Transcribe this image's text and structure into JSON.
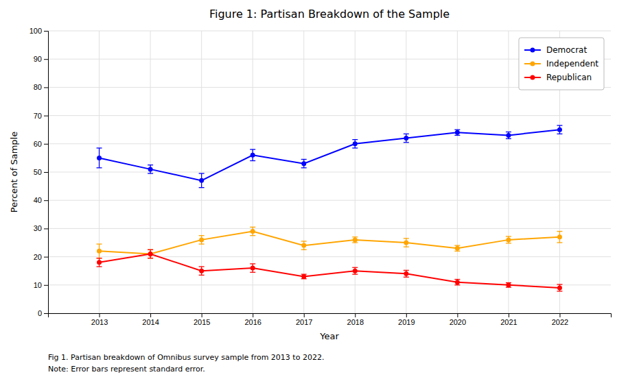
{
  "chart_data": {
    "type": "line",
    "title": "Figure 1: Partisan Breakdown of the Sample",
    "xlabel": "Year",
    "ylabel": "Percent of Sample",
    "x": [
      2013,
      2014,
      2015,
      2016,
      2017,
      2018,
      2019,
      2020,
      2021,
      2022
    ],
    "series": [
      {
        "name": "Democrat",
        "color": "#0000ff",
        "values": [
          55,
          51,
          47,
          56,
          53,
          60,
          62,
          64,
          63,
          65
        ],
        "errors": [
          3.5,
          1.5,
          2.5,
          2.0,
          1.5,
          1.5,
          1.5,
          1.0,
          1.2,
          1.5
        ]
      },
      {
        "name": "Independent",
        "color": "#ffa500",
        "values": [
          22,
          21,
          26,
          29,
          24,
          26,
          25,
          23,
          26,
          27
        ],
        "errors": [
          2.5,
          1.5,
          1.5,
          1.5,
          1.5,
          1.0,
          1.5,
          1.0,
          1.2,
          2.0
        ]
      },
      {
        "name": "Republican",
        "color": "#ff0000",
        "values": [
          18,
          21,
          15,
          16,
          13,
          15,
          14,
          11,
          10,
          9
        ],
        "errors": [
          1.5,
          1.5,
          1.5,
          1.5,
          0.8,
          1.2,
          1.2,
          1.0,
          0.8,
          1.2
        ]
      }
    ],
    "xlim": [
      2012,
      2023
    ],
    "xticks": [
      2013,
      2014,
      2015,
      2016,
      2017,
      2018,
      2019,
      2020,
      2021,
      2022
    ],
    "ylim": [
      0,
      100
    ],
    "yticks": [
      0,
      10,
      20,
      30,
      40,
      50,
      60,
      70,
      80,
      90,
      100
    ],
    "grid": true,
    "legend": "upper right",
    "marker": "circle",
    "annotations": [
      "Fig 1. Partisan breakdown of Omnibus survey sample from 2013 to 2022.",
      "Note: Error bars represent standard error."
    ]
  }
}
